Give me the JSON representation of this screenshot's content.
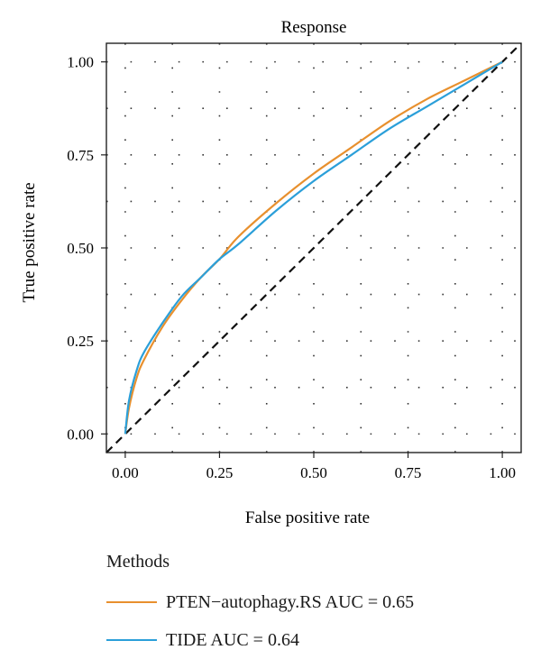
{
  "chart_data": {
    "type": "line",
    "title": "Response",
    "xlabel": "False positive rate",
    "ylabel": "True positive rate",
    "xlim": [
      -0.05,
      1.05
    ],
    "ylim": [
      -0.05,
      1.05
    ],
    "x_ticks": [
      "0.00",
      "0.25",
      "0.50",
      "0.75",
      "1.00"
    ],
    "y_ticks": [
      "0.00",
      "0.25",
      "0.50",
      "0.75",
      "1.00"
    ],
    "grid": "dotted",
    "diagonal_reference": true,
    "legend": {
      "title": "Methods",
      "placement": "bottom"
    },
    "series": [
      {
        "name": "PTEN−autophagy.RS AUC = 0.65",
        "color": "#e8902e",
        "x": [
          0,
          0.01,
          0.03,
          0.05,
          0.1,
          0.15,
          0.2,
          0.25,
          0.3,
          0.4,
          0.5,
          0.6,
          0.7,
          0.8,
          0.9,
          1.0
        ],
        "y": [
          0,
          0.07,
          0.15,
          0.2,
          0.29,
          0.36,
          0.42,
          0.47,
          0.53,
          0.62,
          0.7,
          0.77,
          0.84,
          0.9,
          0.95,
          1.0
        ]
      },
      {
        "name": "TIDE AUC = 0.64",
        "color": "#2b9fd9",
        "x": [
          0,
          0.01,
          0.03,
          0.05,
          0.1,
          0.15,
          0.2,
          0.25,
          0.3,
          0.4,
          0.5,
          0.6,
          0.7,
          0.8,
          0.9,
          1.0
        ],
        "y": [
          0,
          0.09,
          0.17,
          0.22,
          0.3,
          0.37,
          0.42,
          0.47,
          0.51,
          0.6,
          0.68,
          0.75,
          0.82,
          0.88,
          0.94,
          1.0
        ]
      }
    ]
  }
}
